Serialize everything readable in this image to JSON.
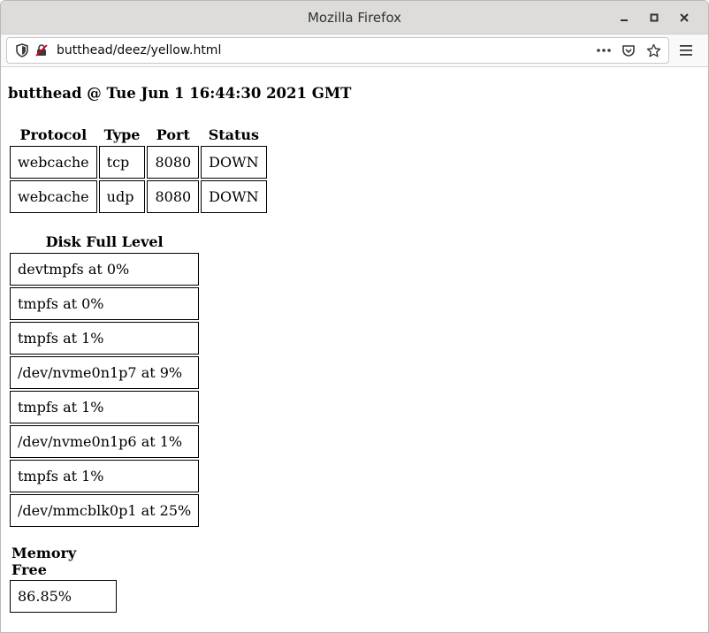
{
  "window": {
    "title": "Mozilla Firefox"
  },
  "browser": {
    "url": "butthead/deez/yellow.html"
  },
  "page": {
    "heading": "butthead @ Tue Jun 1 16:44:30 2021 GMT",
    "services": {
      "headers": [
        "Protocol",
        "Type",
        "Port",
        "Status"
      ],
      "rows": [
        [
          "webcache",
          "tcp",
          "8080",
          "DOWN"
        ],
        [
          "webcache",
          "udp",
          "8080",
          "DOWN"
        ]
      ]
    },
    "disk": {
      "header": "Disk Full Level",
      "rows": [
        "devtmpfs at 0%",
        "tmpfs at 0%",
        "tmpfs at 1%",
        "/dev/nvme0n1p7 at 9%",
        "tmpfs at 1%",
        "/dev/nvme0n1p6 at 1%",
        "tmpfs at 1%",
        "/dev/mmcblk0p1 at 25%"
      ]
    },
    "memory": {
      "header": "Memory Free",
      "value": "86.85%"
    }
  }
}
